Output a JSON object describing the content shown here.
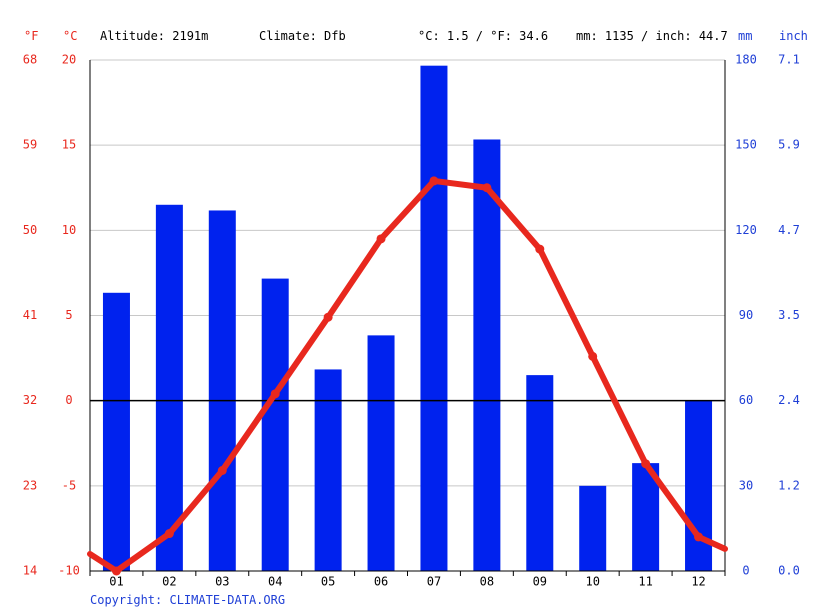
{
  "header": {
    "unit_f": "°F",
    "unit_c": "°C",
    "altitude": "Altitude: 2191m",
    "climate": "Climate: Dfb",
    "temp_avg": "°C: 1.5 / °F: 34.6",
    "precip_total": "mm: 1135 / inch: 44.7",
    "unit_mm": "mm",
    "unit_inch": "inch"
  },
  "footer": {
    "copyright": "Copyright: CLIMATE-DATA.ORG"
  },
  "colors": {
    "temp": "#e8281e",
    "precip": "#0022ee",
    "axis_red": "#e8281e",
    "axis_blue": "#1f3fd6"
  },
  "chart_data": {
    "type": "bar",
    "categories": [
      "01",
      "02",
      "03",
      "04",
      "05",
      "06",
      "07",
      "08",
      "09",
      "10",
      "11",
      "12"
    ],
    "series": [
      {
        "type": "bar",
        "values": [
          98,
          129,
          127,
          103,
          71,
          83,
          178,
          152,
          69,
          30,
          38,
          60
        ]
      },
      {
        "type": "line",
        "values": [
          -10.0,
          -7.8,
          -4.1,
          0.4,
          4.9,
          9.5,
          12.9,
          12.5,
          8.9,
          2.6,
          -3.7,
          -8.0
        ]
      }
    ],
    "line_edges": {
      "start": -9.0,
      "end": -8.7
    },
    "axes": {
      "left_f": {
        "ticks": [
          "68",
          "59",
          "50",
          "41",
          "32",
          "23",
          "14"
        ]
      },
      "left_c": {
        "ticks": [
          "20",
          "15",
          "10",
          "5",
          "0",
          "-5",
          "-10"
        ],
        "ylim": [
          -10,
          20
        ]
      },
      "right_mm": {
        "ticks": [
          "180",
          "150",
          "120",
          "90",
          "60",
          "30",
          "0"
        ],
        "ylim": [
          0,
          180
        ]
      },
      "right_inch": {
        "ticks": [
          "7.1",
          "5.9",
          "4.7",
          "3.5",
          "2.4",
          "1.2",
          "0.0"
        ]
      }
    },
    "grid": true
  }
}
